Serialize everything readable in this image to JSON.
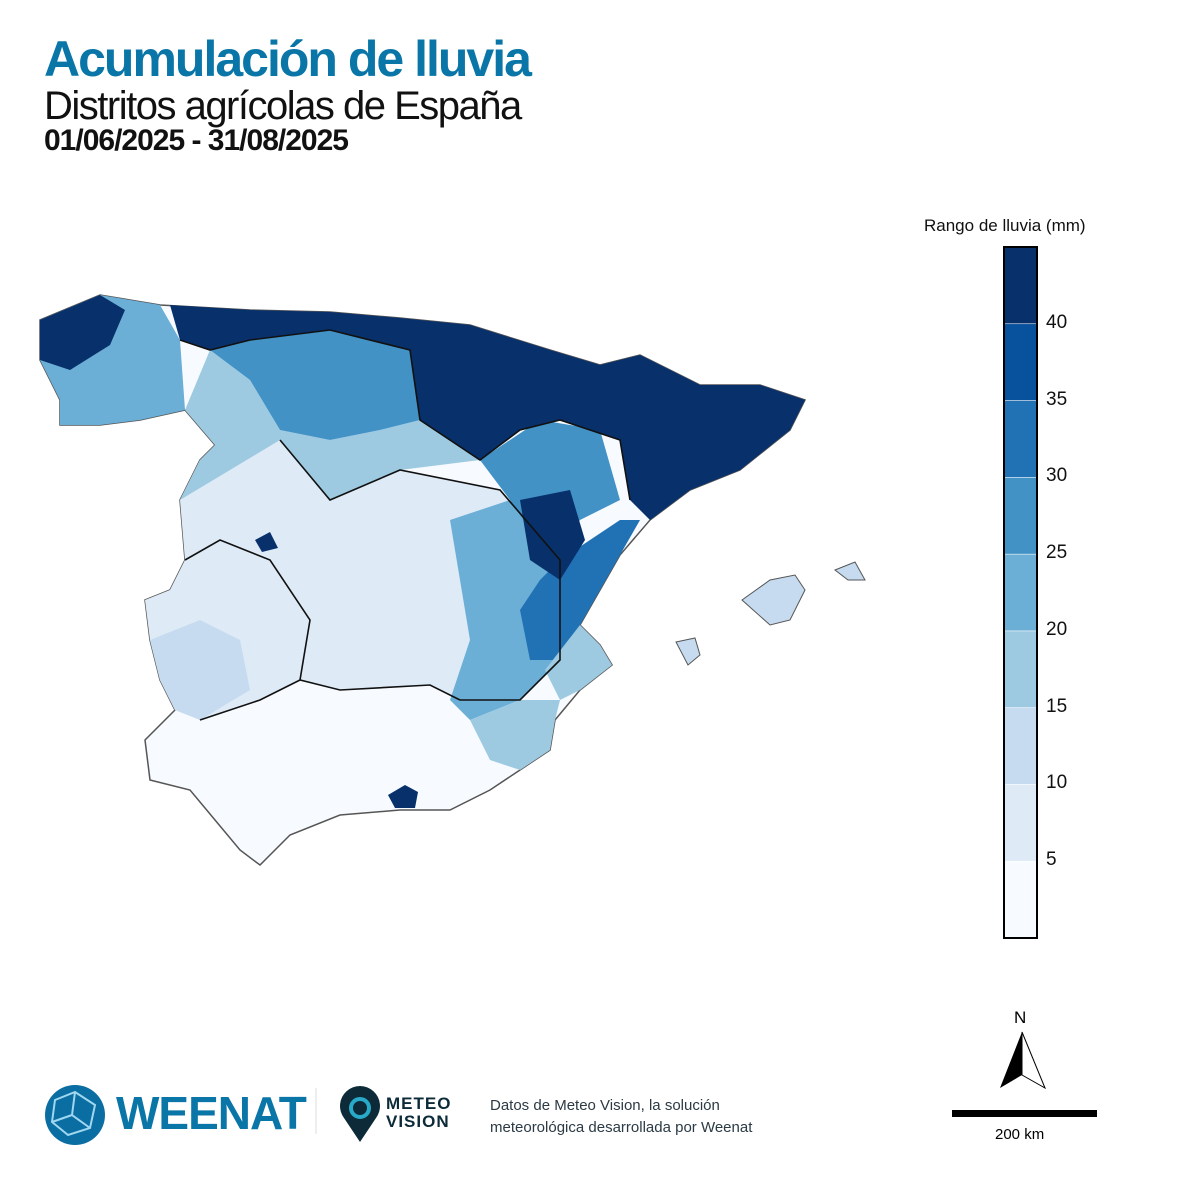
{
  "header": {
    "title": "Acumulación de lluvia",
    "subtitle": "Distritos agrícolas de España",
    "dates": "01/06/2025 - 31/08/2025"
  },
  "legend": {
    "title": "Rango de lluvia (mm)",
    "ticks": [
      "40",
      "35",
      "30",
      "25",
      "20",
      "15",
      "10",
      "5"
    ],
    "colors": [
      "#f7fbff",
      "#deebf7",
      "#c6dbef",
      "#9ecae1",
      "#6baed6",
      "#4292c6",
      "#2171b5",
      "#08519c",
      "#08306b"
    ]
  },
  "north_label": "N",
  "scale_label": "200 km",
  "footer": {
    "brand": "WEENAT",
    "meteo_line1": "METEO",
    "meteo_line2": "VISION",
    "credit_line1": "Datos de Meteo Vision, la solución",
    "credit_line2": "meteorológica desarrollada por Weenat"
  },
  "colors": {
    "title": "#0a76a8",
    "border": "#111111"
  }
}
